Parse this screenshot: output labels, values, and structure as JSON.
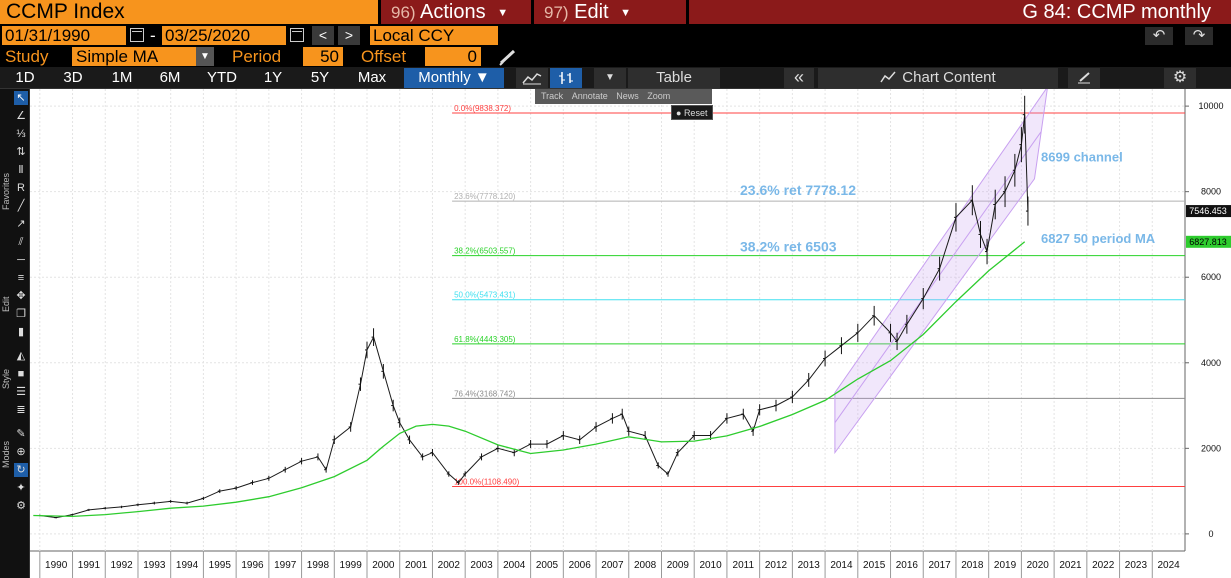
{
  "header": {
    "ticker": "CCMP Index",
    "actions_num": "96)",
    "actions_label": "Actions",
    "edit_num": "97)",
    "edit_label": "Edit",
    "chart_title": "G 84: CCMP monthly"
  },
  "range": {
    "start": "01/31/1990",
    "sep": "-",
    "end": "03/25/2020",
    "prev": "<",
    "next": ">",
    "currency": "Local CCY",
    "undo": "↶",
    "redo": "↷"
  },
  "study": {
    "study_label": "Study",
    "study_value": "Simple MA",
    "period_label": "Period",
    "period_value": "50",
    "offset_label": "Offset",
    "offset_value": "0"
  },
  "toolbar": {
    "periods": [
      "1D",
      "3D",
      "1M",
      "6M",
      "YTD",
      "1Y",
      "5Y",
      "Max"
    ],
    "frequency": "Monthly ▼",
    "table": "Table",
    "collapse": "«",
    "chart_content": "Chart Content"
  },
  "side_labels": {
    "favorites": "Favorites",
    "edit": "Edit",
    "style": "Style",
    "modes": "Modes"
  },
  "chart_controls": {
    "track": "Track",
    "annotate": "Annotate",
    "news": "News",
    "zoom": "Zoom",
    "reset": "Reset"
  },
  "colors": {
    "price": "#e8e8e8",
    "ma": "#2ecc2e",
    "fib_0": "#ff4040",
    "fib_236": "#b0b0b0",
    "fib_382": "#28d228",
    "fib_50": "#40e0f0",
    "fib_618": "#28d228",
    "fib_764": "#8c8c8c",
    "fib_100": "#ff4040",
    "channel": "#c8a0f0",
    "annot": "#7ab8e8"
  },
  "chart_data": {
    "type": "line",
    "x_axis_years": [
      "1990",
      "1991",
      "1992",
      "1993",
      "1994",
      "1995",
      "1996",
      "1997",
      "1998",
      "1999",
      "2000",
      "2001",
      "2002",
      "2003",
      "2004",
      "2005",
      "2006",
      "2007",
      "2008",
      "2009",
      "2010",
      "2011",
      "2012",
      "2013",
      "2014",
      "2015",
      "2016",
      "2017",
      "2018",
      "2019",
      "2020",
      "2021",
      "2022",
      "2023",
      "2024"
    ],
    "y_ticks": [
      "0",
      "2000",
      "4000",
      "6000",
      "8000",
      "10000"
    ],
    "ylim": [
      -400,
      10400
    ],
    "xlim": [
      1989.7,
      2025.0
    ],
    "last_price": "7546.453",
    "last_ma": "6827.813",
    "series": [
      {
        "style": "bar",
        "x": [
          1990.0,
          1990.5,
          1991.0,
          1991.5,
          1992.0,
          1992.5,
          1993.0,
          1993.5,
          1994.0,
          1994.5,
          1995.0,
          1995.5,
          1996.0,
          1996.5,
          1997.0,
          1997.5,
          1998.0,
          1998.5,
          1998.75,
          1999.0,
          1999.5,
          1999.8,
          2000.0,
          2000.2,
          2000.5,
          2000.8,
          2001.0,
          2001.3,
          2001.7,
          2002.0,
          2002.5,
          2002.8,
          2003.0,
          2003.5,
          2004.0,
          2004.5,
          2005.0,
          2005.5,
          2006.0,
          2006.5,
          2007.0,
          2007.5,
          2007.8,
          2008.0,
          2008.5,
          2008.9,
          2009.2,
          2009.5,
          2010.0,
          2010.5,
          2011.0,
          2011.5,
          2011.8,
          2012.0,
          2012.5,
          2013.0,
          2013.5,
          2014.0,
          2014.5,
          2015.0,
          2015.5,
          2016.0,
          2016.2,
          2016.5,
          2017.0,
          2017.5,
          2018.0,
          2018.5,
          2018.75,
          2018.95,
          2019.2,
          2019.5,
          2019.8,
          2020.0,
          2020.1,
          2020.2
        ],
        "values": [
          430,
          380,
          450,
          560,
          600,
          630,
          680,
          720,
          760,
          720,
          830,
          1000,
          1070,
          1200,
          1300,
          1500,
          1700,
          1800,
          1500,
          2200,
          2500,
          3500,
          4300,
          4600,
          3800,
          3000,
          2600,
          2200,
          1800,
          1900,
          1400,
          1200,
          1400,
          1800,
          2000,
          1900,
          2100,
          2100,
          2300,
          2200,
          2500,
          2700,
          2800,
          2400,
          2300,
          1600,
          1400,
          1900,
          2300,
          2300,
          2700,
          2800,
          2400,
          2900,
          3000,
          3200,
          3600,
          4100,
          4400,
          4700,
          5100,
          4700,
          4500,
          4900,
          5500,
          6200,
          7400,
          7800,
          7000,
          6600,
          7700,
          8000,
          8500,
          9100,
          9800,
          7546
        ]
      },
      {
        "name": "period MA",
        "style": "line",
        "x": [
          1989.8,
          1991,
          1992,
          1993,
          1994,
          1995,
          1996,
          1997,
          1998,
          1999,
          2000,
          2000.5,
          2001,
          2001.5,
          2002,
          2002.5,
          2003,
          2004,
          2005,
          2006,
          2007,
          2008,
          2009,
          2010,
          2011,
          2012,
          2013,
          2014,
          2015,
          2016,
          2017,
          2018,
          2019,
          2020.1
        ],
        "values": [
          430,
          410,
          450,
          520,
          600,
          650,
          740,
          870,
          1080,
          1340,
          1720,
          2050,
          2350,
          2520,
          2560,
          2520,
          2400,
          2080,
          1880,
          1960,
          2100,
          2270,
          2150,
          2170,
          2290,
          2510,
          2790,
          3120,
          3620,
          4050,
          4660,
          5430,
          6150,
          6828
        ]
      }
    ],
    "fib_levels": [
      {
        "label": "0.0%(9838.372)",
        "value": 9838.372,
        "color": "#ff4040"
      },
      {
        "label": "23.6%(7778.120)",
        "value": 7778.12,
        "color": "#b0b0b0"
      },
      {
        "label": "38.2%(6503.557)",
        "value": 6503.557,
        "color": "#28d228"
      },
      {
        "label": "50.0%(5473.431)",
        "value": 5473.431,
        "color": "#40e0f0"
      },
      {
        "label": "61.8%(4443.305)",
        "value": 4443.305,
        "color": "#28d228"
      },
      {
        "label": "76.4%(3168.742)",
        "value": 3168.742,
        "color": "#8c8c8c"
      },
      {
        "label": "100.0%(1108.490)",
        "value": 1108.49,
        "color": "#ff4040"
      }
    ],
    "annotations": {
      "ret236": "23.6% ret 7778.12",
      "ret382": "38.2% ret 6503",
      "channel": "8699 channel",
      "ma": "6827 50  period MA"
    }
  }
}
